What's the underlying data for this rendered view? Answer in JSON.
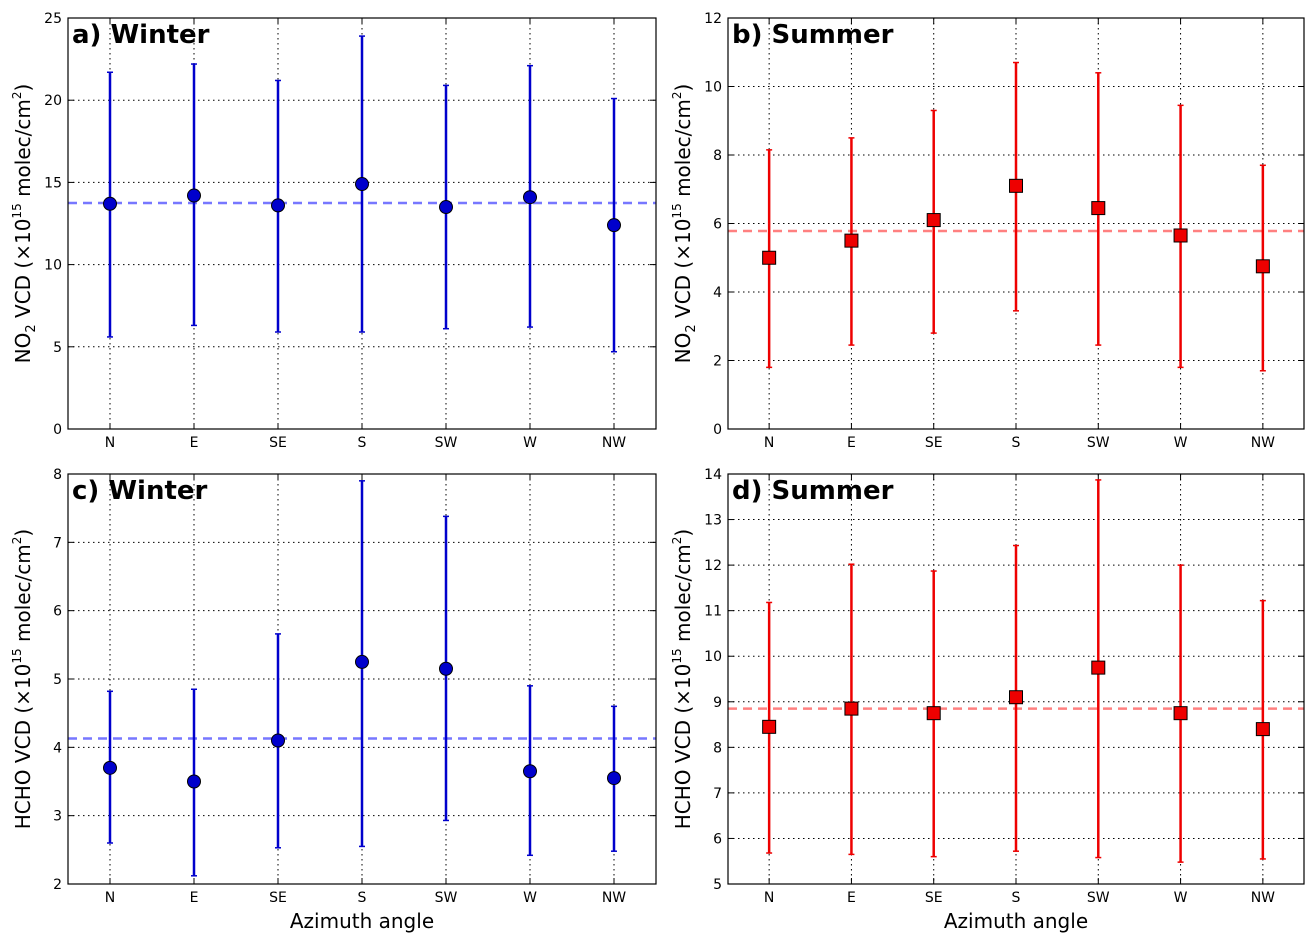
{
  "chart_data": [
    {
      "type": "scatter",
      "panel": "a",
      "title": "a) Winter",
      "ylabel": "VCD (×10",
      "ylabel_prefix": "NO",
      "ylabel_sub": "2",
      "ylabel_sup": "15",
      "ylabel_suffix": " molec/cm",
      "ylabel_sup2": "2",
      "ylabel_end": ")",
      "xlabel": "",
      "categories": [
        "N",
        "E",
        "SE",
        "S",
        "SW",
        "W",
        "NW"
      ],
      "values": [
        13.7,
        14.2,
        13.6,
        14.9,
        13.5,
        14.1,
        12.4
      ],
      "error_low": [
        5.6,
        6.3,
        5.9,
        5.9,
        6.1,
        6.2,
        4.7
      ],
      "error_high": [
        21.7,
        22.2,
        21.2,
        23.9,
        20.9,
        22.1,
        20.1
      ],
      "mean_line": 13.75,
      "ylim": [
        0,
        25
      ],
      "yticks": [
        "0",
        "5",
        "10",
        "15",
        "20",
        "25"
      ],
      "marker": "circle",
      "color": "#0000cc",
      "mean_color": "#7777ff",
      "grid": true
    },
    {
      "type": "scatter",
      "panel": "b",
      "title": "b) Summer",
      "ylabel": "VCD (×10",
      "ylabel_prefix": "NO",
      "ylabel_sub": "2",
      "ylabel_sup": "15",
      "ylabel_suffix": " molec/cm",
      "ylabel_sup2": "2",
      "ylabel_end": ")",
      "xlabel": "",
      "categories": [
        "N",
        "E",
        "SE",
        "S",
        "SW",
        "W",
        "NW"
      ],
      "values": [
        5.0,
        5.5,
        6.1,
        7.1,
        6.45,
        5.65,
        4.75
      ],
      "error_low": [
        1.8,
        2.45,
        2.8,
        3.45,
        2.45,
        1.8,
        1.7
      ],
      "error_high": [
        8.15,
        8.5,
        9.3,
        10.7,
        10.4,
        9.45,
        7.7
      ],
      "mean_line": 5.78,
      "ylim": [
        0,
        12
      ],
      "yticks": [
        "0",
        "2",
        "4",
        "6",
        "8",
        "10",
        "12"
      ],
      "marker": "square",
      "color": "#ee0000",
      "mean_color": "#ff8080",
      "grid": true
    },
    {
      "type": "scatter",
      "panel": "c",
      "title": "c) Winter",
      "ylabel": "VCD (×10",
      "ylabel_prefix": "HCHO",
      "ylabel_sub": "",
      "ylabel_sup": "15",
      "ylabel_suffix": " molec/cm",
      "ylabel_sup2": "2",
      "ylabel_end": ")",
      "xlabel": "Azimuth angle",
      "categories": [
        "N",
        "E",
        "SE",
        "S",
        "SW",
        "W",
        "NW"
      ],
      "values": [
        3.7,
        3.5,
        4.1,
        5.25,
        5.15,
        3.65,
        3.55
      ],
      "error_low": [
        2.6,
        2.12,
        2.53,
        2.55,
        2.93,
        2.42,
        2.48
      ],
      "error_high": [
        4.82,
        4.85,
        5.66,
        7.9,
        7.38,
        4.9,
        4.6
      ],
      "mean_line": 4.13,
      "ylim": [
        2,
        8
      ],
      "yticks": [
        "2",
        "3",
        "4",
        "5",
        "6",
        "7",
        "8"
      ],
      "marker": "circle",
      "color": "#0000cc",
      "mean_color": "#7777ff",
      "grid": true
    },
    {
      "type": "scatter",
      "panel": "d",
      "title": "d) Summer",
      "ylabel": "VCD (×10",
      "ylabel_prefix": "HCHO",
      "ylabel_sub": "",
      "ylabel_sup": "15",
      "ylabel_suffix": " molec/cm",
      "ylabel_sup2": "2",
      "ylabel_end": ")",
      "xlabel": "Azimuth angle",
      "categories": [
        "N",
        "E",
        "SE",
        "S",
        "SW",
        "W",
        "NW"
      ],
      "values": [
        8.45,
        8.85,
        8.75,
        9.1,
        9.75,
        8.75,
        8.4
      ],
      "error_low": [
        5.68,
        5.65,
        5.6,
        5.72,
        5.58,
        5.48,
        5.55
      ],
      "error_high": [
        11.18,
        12.02,
        11.87,
        12.43,
        13.87,
        12.0,
        11.22
      ],
      "mean_line": 8.85,
      "ylim": [
        5,
        14
      ],
      "yticks": [
        "5",
        "6",
        "7",
        "8",
        "9",
        "10",
        "11",
        "12",
        "13",
        "14"
      ],
      "marker": "square",
      "color": "#ee0000",
      "mean_color": "#ff8080",
      "grid": true
    }
  ]
}
